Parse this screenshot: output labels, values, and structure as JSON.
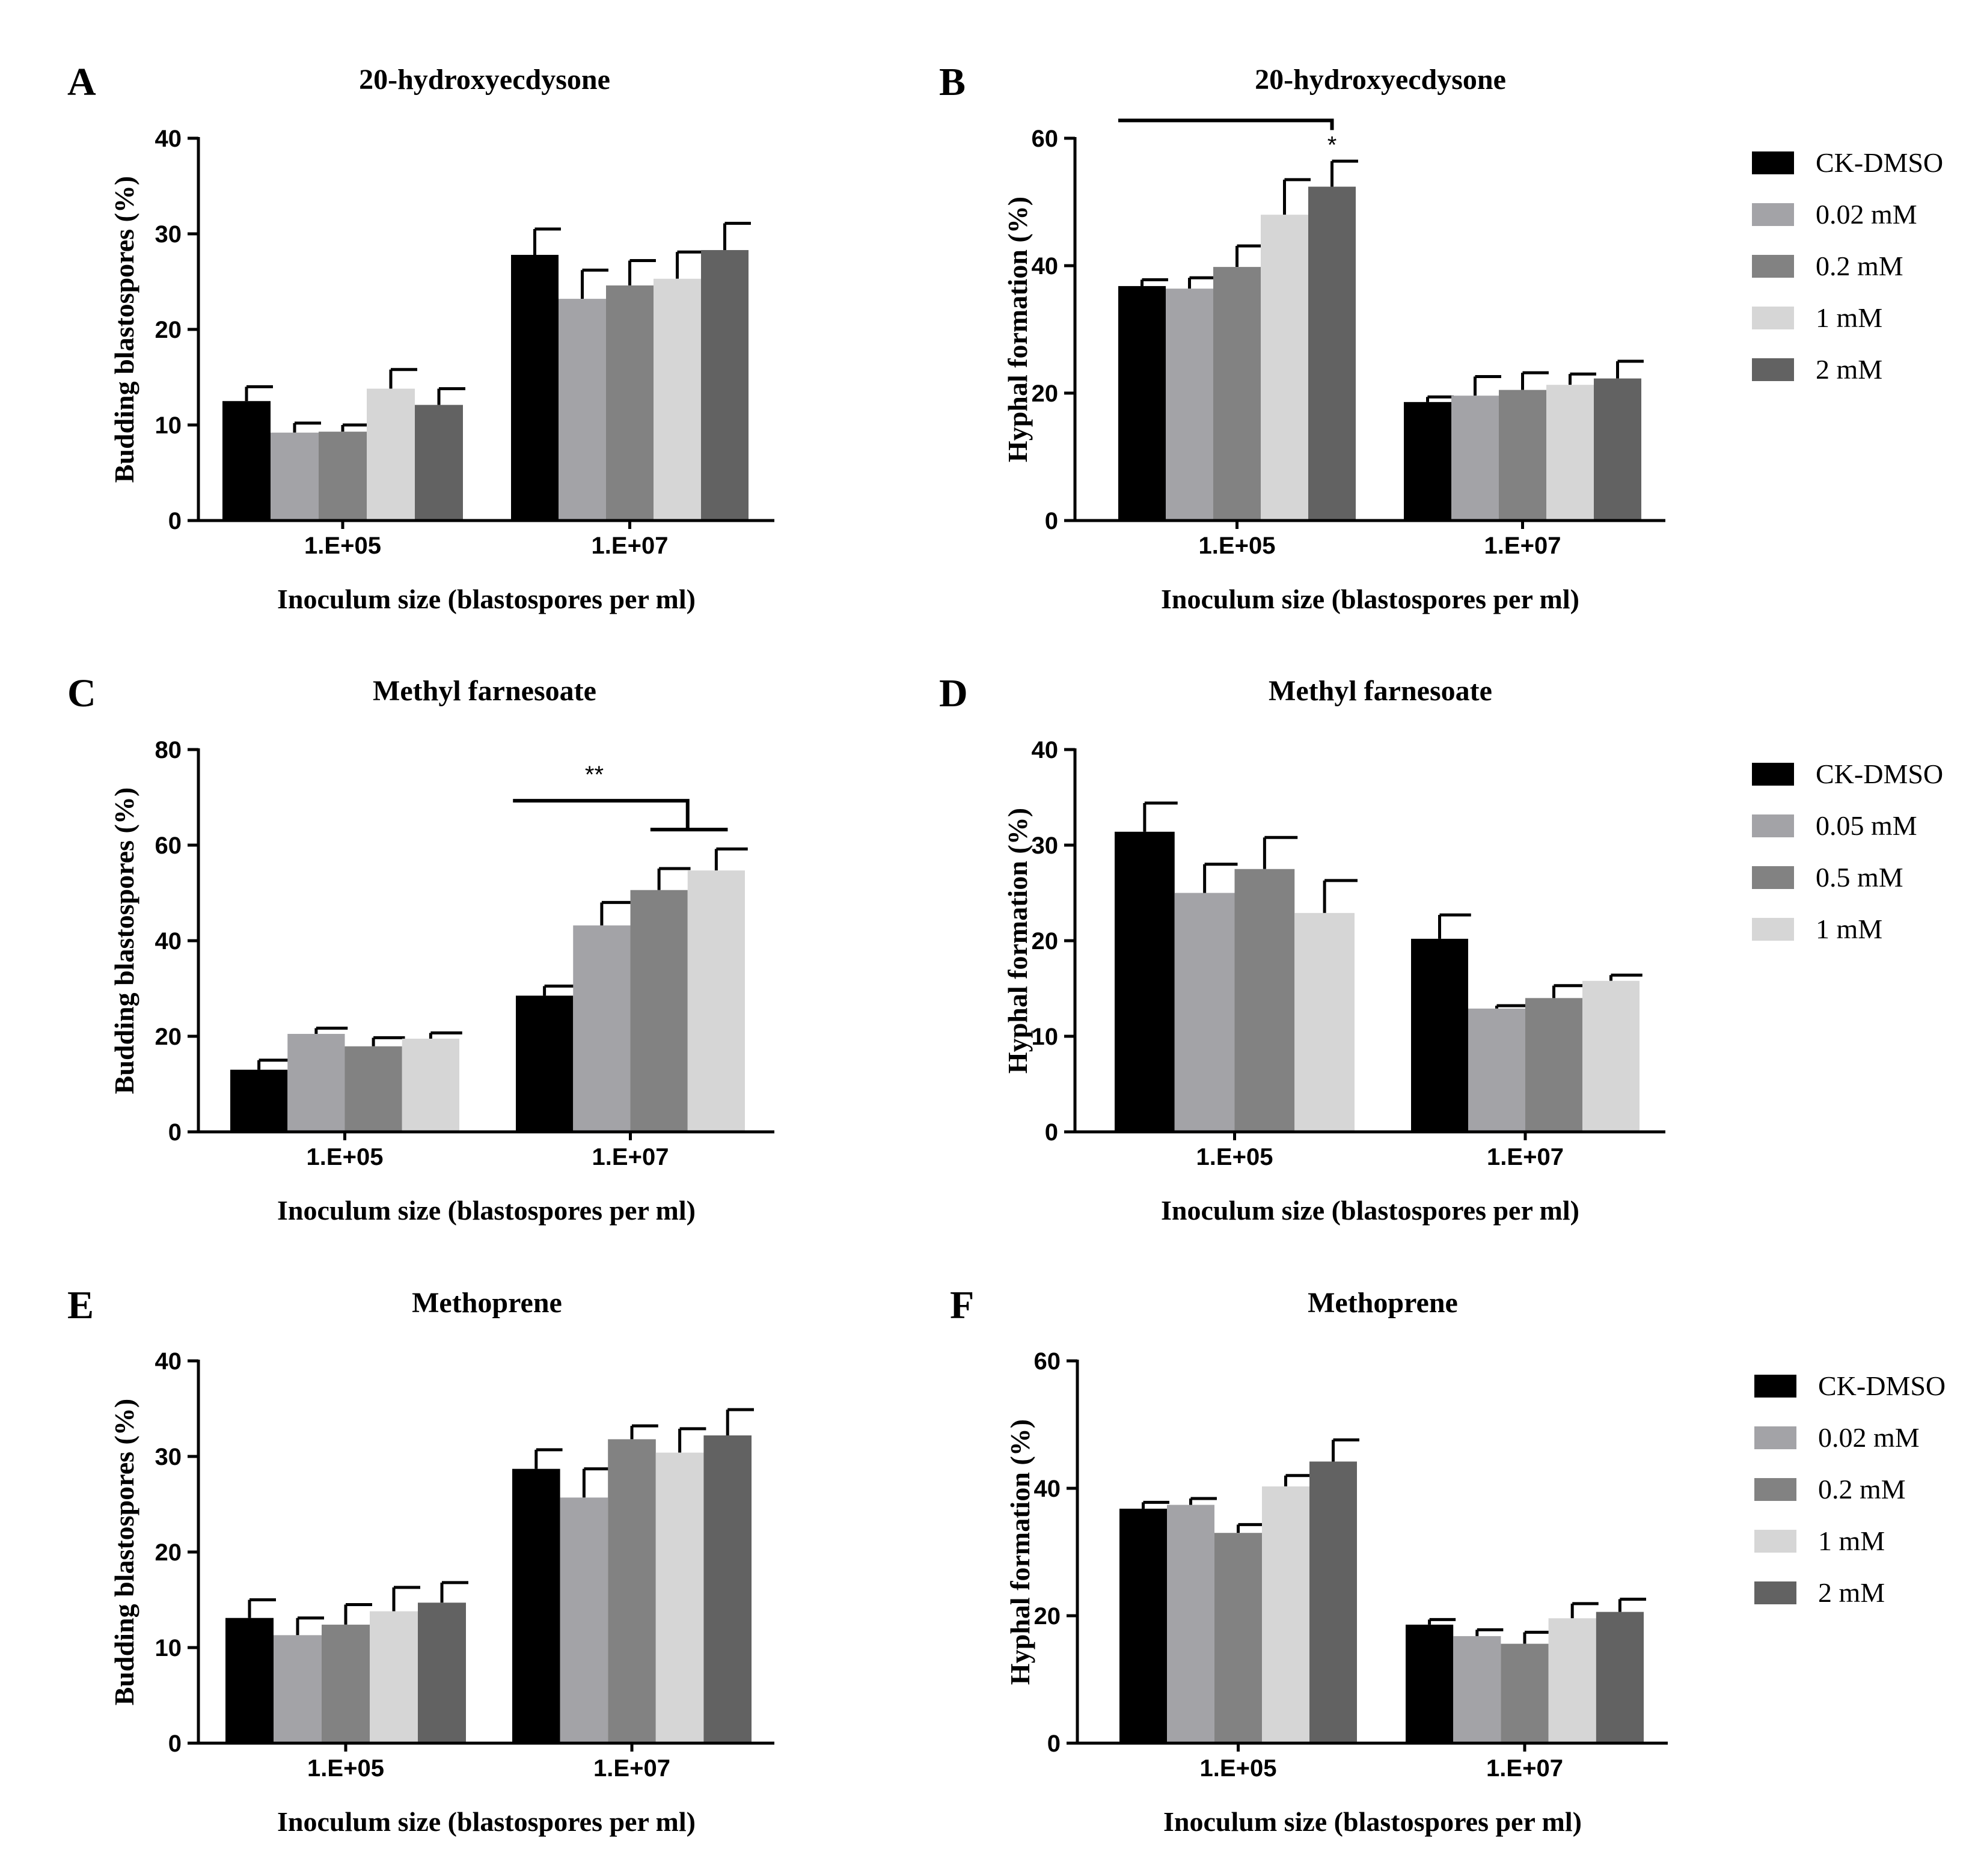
{
  "colors": {
    "CK-DMSO": "#000000",
    "0.02 mM": "#a3a3a7",
    "0.05 mM": "#a3a3a7",
    "0.2 mM": "#828282",
    "0.5 mM": "#828282",
    "1 mM": "#d6d6d6",
    "2 mM": "#626262"
  },
  "legends": [
    {
      "entries": [
        "CK-DMSO",
        "0.02 mM",
        "0.2 mM",
        "1 mM",
        "2 mM"
      ]
    },
    {
      "entries": [
        "CK-DMSO",
        "0.05 mM",
        "0.5 mM",
        "1 mM"
      ]
    },
    {
      "entries": [
        "CK-DMSO",
        "0.02 mM",
        "0.2 mM",
        "1 mM",
        "2 mM"
      ]
    }
  ],
  "chart_data": [
    {
      "panel": "A",
      "type": "bar",
      "title": "20-hydroxyecdysone",
      "xlabel": "Inoculum size (blastospores per ml)",
      "ylabel": "Budding blastospores (%)",
      "ylim": [
        0,
        40
      ],
      "yticks": [
        0,
        10,
        20,
        30,
        40
      ],
      "categories": [
        "1.E+05",
        "1.E+07"
      ],
      "series": [
        {
          "name": "CK-DMSO",
          "values": [
            12.5,
            27.8
          ],
          "errors": [
            1.5,
            2.7
          ]
        },
        {
          "name": "0.02 mM",
          "values": [
            9.2,
            23.2
          ],
          "errors": [
            1.0,
            3.0
          ]
        },
        {
          "name": "0.2 mM",
          "values": [
            9.3,
            24.6
          ],
          "errors": [
            0.7,
            2.6
          ]
        },
        {
          "name": "1 mM",
          "values": [
            13.8,
            25.3
          ],
          "errors": [
            2.0,
            2.8
          ]
        },
        {
          "name": "2 mM",
          "values": [
            12.1,
            28.3
          ],
          "errors": [
            1.7,
            2.8
          ]
        }
      ],
      "annotations": []
    },
    {
      "panel": "B",
      "type": "bar",
      "title": "20-hydroxyecdysone",
      "xlabel": "Inoculum size (blastospores per ml)",
      "ylabel": "Hyphal formation (%)",
      "ylim": [
        0,
        60
      ],
      "yticks": [
        0,
        20,
        40,
        60
      ],
      "categories": [
        "1.E+05",
        "1.E+07"
      ],
      "series": [
        {
          "name": "CK-DMSO",
          "values": [
            36.8,
            18.6
          ],
          "errors": [
            1.0,
            0.8
          ]
        },
        {
          "name": "0.02 mM",
          "values": [
            36.4,
            19.6
          ],
          "errors": [
            1.7,
            3.0
          ]
        },
        {
          "name": "0.2 mM",
          "values": [
            39.8,
            20.5
          ],
          "errors": [
            3.3,
            2.7
          ]
        },
        {
          "name": "1 mM",
          "values": [
            48.0,
            21.3
          ],
          "errors": [
            5.5,
            1.7
          ]
        },
        {
          "name": "2 mM",
          "values": [
            52.4,
            22.3
          ],
          "errors": [
            4.0,
            2.7
          ]
        }
      ],
      "annotations": [
        {
          "label": "*",
          "category": 0,
          "from_series": 0,
          "to_series": 4,
          "y": 62.8
        }
      ]
    },
    {
      "panel": "C",
      "type": "bar",
      "title": "Methyl farnesoate",
      "xlabel": "Inoculum size (blastospores per ml)",
      "ylabel": "Budding blastospores (%)",
      "ylim": [
        0,
        80
      ],
      "yticks": [
        0,
        20,
        40,
        60,
        80
      ],
      "categories": [
        "1.E+05",
        "1.E+07"
      ],
      "series": [
        {
          "name": "CK-DMSO",
          "values": [
            13.0,
            28.5
          ],
          "errors": [
            2.0,
            2.0
          ]
        },
        {
          "name": "0.05 mM",
          "values": [
            20.5,
            43.2
          ],
          "errors": [
            1.2,
            4.8
          ]
        },
        {
          "name": "0.5 mM",
          "values": [
            17.9,
            50.6
          ],
          "errors": [
            1.8,
            4.5
          ]
        },
        {
          "name": "1 mM",
          "values": [
            19.5,
            54.7
          ],
          "errors": [
            1.2,
            4.5
          ]
        }
      ],
      "annotations": [
        {
          "label": "**",
          "category": 1,
          "from_series": 0,
          "to_series": [
            2,
            3
          ],
          "y": 69.3
        }
      ]
    },
    {
      "panel": "D",
      "type": "bar",
      "title": "Methyl farnesoate",
      "xlabel": "Inoculum size (blastospores per ml)",
      "ylabel": "Hyphal formation (%)",
      "ylim": [
        0,
        40
      ],
      "yticks": [
        0,
        10,
        20,
        30,
        40
      ],
      "categories": [
        "1.E+05",
        "1.E+07"
      ],
      "series": [
        {
          "name": "CK-DMSO",
          "values": [
            31.4,
            20.2
          ],
          "errors": [
            3.0,
            2.5
          ]
        },
        {
          "name": "0.05 mM",
          "values": [
            25.0,
            12.9
          ],
          "errors": [
            3.0,
            0.3
          ]
        },
        {
          "name": "0.5 mM",
          "values": [
            27.5,
            14.0
          ],
          "errors": [
            3.3,
            1.3
          ]
        },
        {
          "name": "1 mM",
          "values": [
            22.9,
            15.8
          ],
          "errors": [
            3.4,
            0.6
          ]
        }
      ],
      "annotations": []
    },
    {
      "panel": "E",
      "type": "bar",
      "title": "Methoprene",
      "xlabel": "Inoculum size (blastospores per ml)",
      "ylabel": "Budding blastospores (%)",
      "ylim": [
        0,
        40
      ],
      "yticks": [
        0,
        10,
        20,
        30,
        40
      ],
      "categories": [
        "1.E+05",
        "1.E+07"
      ],
      "series": [
        {
          "name": "CK-DMSO",
          "values": [
            13.1,
            28.7
          ],
          "errors": [
            1.9,
            2.0
          ]
        },
        {
          "name": "0.02 mM",
          "values": [
            11.3,
            25.7
          ],
          "errors": [
            1.8,
            3.0
          ]
        },
        {
          "name": "0.2 mM",
          "values": [
            12.4,
            31.8
          ],
          "errors": [
            2.1,
            1.4
          ]
        },
        {
          "name": "1 mM",
          "values": [
            13.8,
            30.4
          ],
          "errors": [
            2.5,
            2.5
          ]
        },
        {
          "name": "2 mM",
          "values": [
            14.7,
            32.2
          ],
          "errors": [
            2.1,
            2.7
          ]
        }
      ],
      "annotations": []
    },
    {
      "panel": "F",
      "type": "bar",
      "title": "Methoprene",
      "xlabel": "Inoculum size (blastospores per ml)",
      "ylabel": "Hyphal formation (%)",
      "ylim": [
        0,
        60
      ],
      "yticks": [
        0,
        20,
        40,
        60
      ],
      "categories": [
        "1.E+05",
        "1.E+07"
      ],
      "series": [
        {
          "name": "CK-DMSO",
          "values": [
            36.8,
            18.6
          ],
          "errors": [
            1.0,
            0.8
          ]
        },
        {
          "name": "0.02 mM",
          "values": [
            37.4,
            16.8
          ],
          "errors": [
            1.0,
            1.0
          ]
        },
        {
          "name": "0.2 mM",
          "values": [
            33.0,
            15.6
          ],
          "errors": [
            1.3,
            1.8
          ]
        },
        {
          "name": "1 mM",
          "values": [
            40.3,
            19.6
          ],
          "errors": [
            1.7,
            2.3
          ]
        },
        {
          "name": "2 mM",
          "values": [
            44.2,
            20.6
          ],
          "errors": [
            3.4,
            2.0
          ]
        }
      ],
      "annotations": []
    }
  ]
}
